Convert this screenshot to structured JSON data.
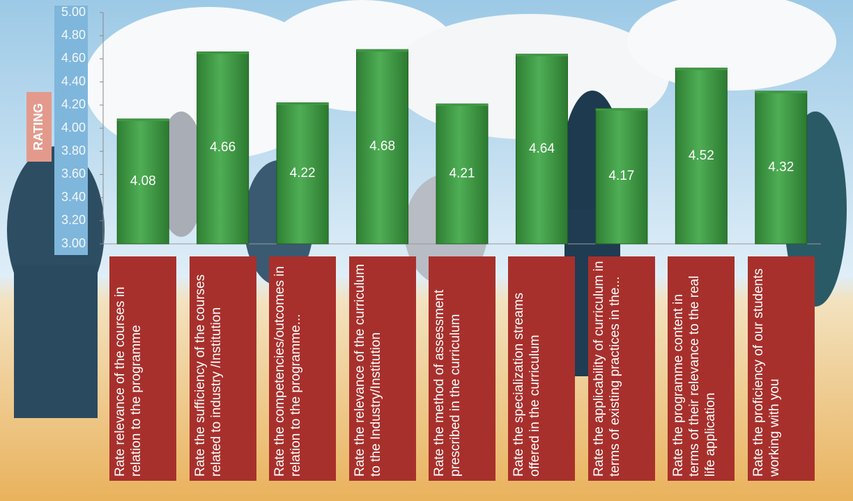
{
  "chart_data": {
    "type": "bar",
    "y_label": "RATING",
    "categories": [
      "Rate relevance of the courses in relation to the programme",
      "Rate the sufficiency of the courses related to industry /Institution",
      "Rate the competencies/outcomes in relation to the programme...",
      "Rate the relevance of the curriculum to the Industry/Institution",
      "Rate the method of assessment prescribed in the curriculum",
      "Rate the specialization streams offered in the curriculum",
      "Rate the applicability of curriculum in terms of existing practices in the...",
      "Rate the programme content in terms of their relevance to the real life application",
      "Rate the proficiency of our students working with you"
    ],
    "values": [
      4.08,
      4.66,
      4.22,
      4.68,
      4.21,
      4.64,
      4.17,
      4.52,
      4.32
    ],
    "color": "#3f9a43",
    "label_color": "#a8302c",
    "ylim": [
      3,
      5
    ],
    "yticks": [
      {
        "value": 3,
        "label": "3.00"
      },
      {
        "value": 3.2,
        "label": "3.20"
      },
      {
        "value": 3.4,
        "label": "3.40"
      },
      {
        "value": 3.6,
        "label": "3.60"
      },
      {
        "value": 3.8,
        "label": "3.80"
      },
      {
        "value": 4,
        "label": "4.00"
      },
      {
        "value": 4.2,
        "label": "4.20"
      },
      {
        "value": 4.4,
        "label": "4.40"
      },
      {
        "value": 4.6,
        "label": "4.60"
      },
      {
        "value": 4.8,
        "label": "4.80"
      },
      {
        "value": 5,
        "label": "5.00"
      }
    ],
    "grid": false
  }
}
